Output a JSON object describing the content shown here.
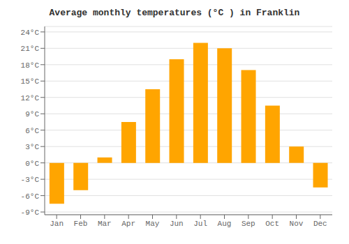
{
  "chart_data": {
    "type": "bar",
    "title": "Average monthly temperatures (°C ) in Franklin",
    "categories": [
      "Jan",
      "Feb",
      "Mar",
      "Apr",
      "May",
      "Jun",
      "Jul",
      "Aug",
      "Sep",
      "Oct",
      "Nov",
      "Dec"
    ],
    "values": [
      -7.5,
      -5.0,
      1.0,
      7.5,
      13.5,
      19.0,
      22.0,
      21.0,
      17.0,
      10.5,
      3.0,
      -4.5
    ],
    "color": "#FFA500",
    "ylim": [
      -9.5,
      25
    ],
    "yticks": [
      {
        "value": -9,
        "label": "-9°C"
      },
      {
        "value": -6,
        "label": "-6°C"
      },
      {
        "value": -3,
        "label": "-3°C"
      },
      {
        "value": 0,
        "label": "0°C"
      },
      {
        "value": 3,
        "label": "3°C"
      },
      {
        "value": 6,
        "label": "6°C"
      },
      {
        "value": 9,
        "label": "9°C"
      },
      {
        "value": 12,
        "label": "12°C"
      },
      {
        "value": 15,
        "label": "15°C"
      },
      {
        "value": 18,
        "label": "18°C"
      },
      {
        "value": 21,
        "label": "21°C"
      },
      {
        "value": 24,
        "label": "24°C"
      }
    ],
    "grid": true
  }
}
